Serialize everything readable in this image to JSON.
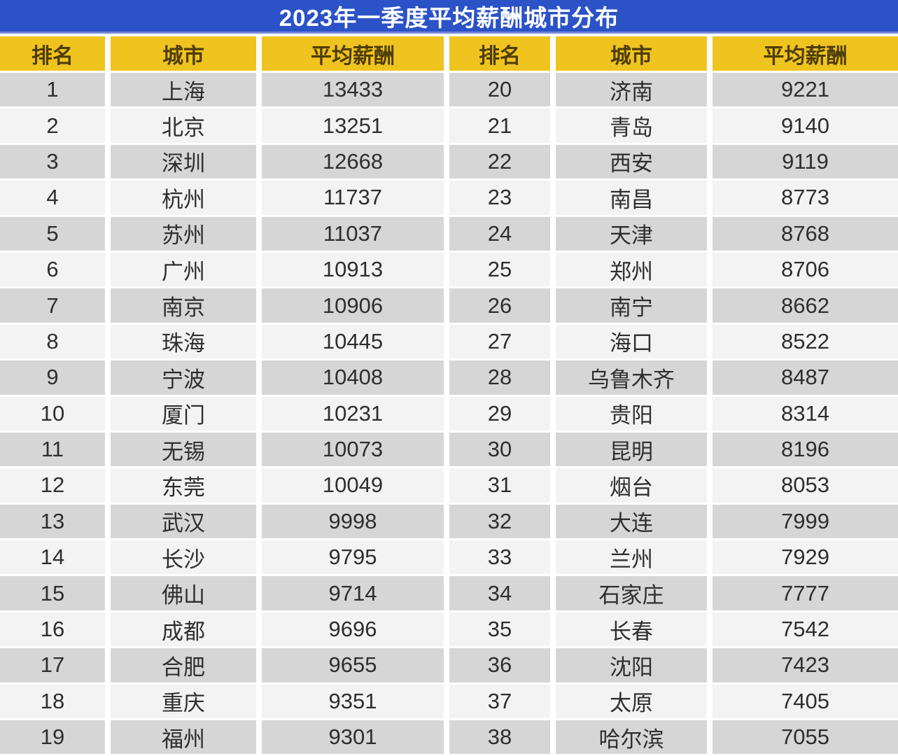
{
  "title": "2023年一季度平均薪酬城市分布",
  "chart_data": {
    "type": "table",
    "title": "2023年一季度平均薪酬城市分布",
    "columns": [
      "排名",
      "城市",
      "平均薪酬",
      "排名",
      "城市",
      "平均薪酬"
    ],
    "rows": [
      [
        "1",
        "上海",
        "13433",
        "20",
        "济南",
        "9221"
      ],
      [
        "2",
        "北京",
        "13251",
        "21",
        "青岛",
        "9140"
      ],
      [
        "3",
        "深圳",
        "12668",
        "22",
        "西安",
        "9119"
      ],
      [
        "4",
        "杭州",
        "11737",
        "23",
        "南昌",
        "8773"
      ],
      [
        "5",
        "苏州",
        "11037",
        "24",
        "天津",
        "8768"
      ],
      [
        "6",
        "广州",
        "10913",
        "25",
        "郑州",
        "8706"
      ],
      [
        "7",
        "南京",
        "10906",
        "26",
        "南宁",
        "8662"
      ],
      [
        "8",
        "珠海",
        "10445",
        "27",
        "海口",
        "8522"
      ],
      [
        "9",
        "宁波",
        "10408",
        "28",
        "乌鲁木齐",
        "8487"
      ],
      [
        "10",
        "厦门",
        "10231",
        "29",
        "贵阳",
        "8314"
      ],
      [
        "11",
        "无锡",
        "10073",
        "30",
        "昆明",
        "8196"
      ],
      [
        "12",
        "东莞",
        "10049",
        "31",
        "烟台",
        "8053"
      ],
      [
        "13",
        "武汉",
        "9998",
        "32",
        "大连",
        "7999"
      ],
      [
        "14",
        "长沙",
        "9795",
        "33",
        "兰州",
        "7929"
      ],
      [
        "15",
        "佛山",
        "9714",
        "34",
        "石家庄",
        "7777"
      ],
      [
        "16",
        "成都",
        "9696",
        "35",
        "长春",
        "7542"
      ],
      [
        "17",
        "合肥",
        "9655",
        "36",
        "沈阳",
        "7423"
      ],
      [
        "18",
        "重庆",
        "9351",
        "37",
        "太原",
        "7405"
      ],
      [
        "19",
        "福州",
        "9301",
        "38",
        "哈尔滨",
        "7055"
      ]
    ],
    "layout": {
      "left_table_ranks": "1-19",
      "right_table_ranks": "20-38",
      "row_striping": "odd rows gray, even rows light"
    }
  },
  "colors": {
    "title_bg": "#2b52c7",
    "title_text": "#ffffff",
    "header_bg": "#f0c41f",
    "header_text": "#4f3d08",
    "row_odd_bg": "#d6d6d6",
    "row_even_bg": "#f3f3f3",
    "cell_text": "#2e2e2e",
    "separator": "#ffffff"
  }
}
